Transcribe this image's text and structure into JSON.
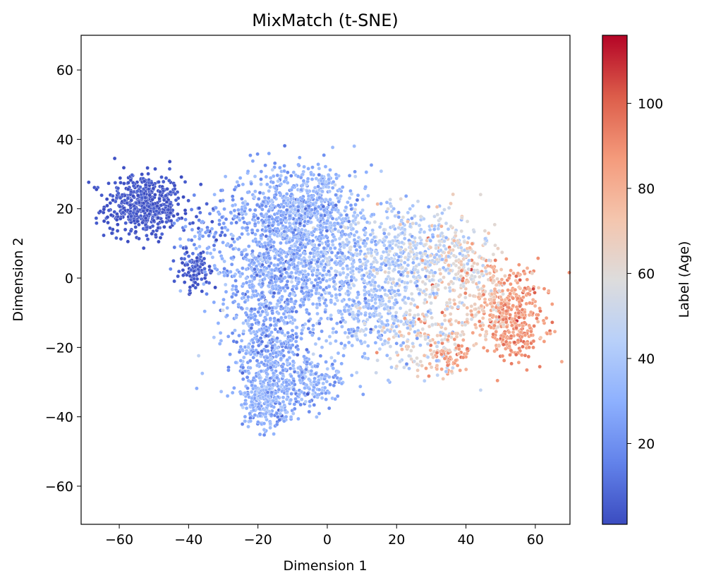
{
  "chart_data": {
    "type": "scatter",
    "title": "MixMatch (t-SNE)",
    "xlabel": "Dimension 1",
    "ylabel": "Dimension 2",
    "xlim": [
      -71,
      70
    ],
    "ylim": [
      -71,
      70
    ],
    "xticks": [
      -60,
      -40,
      -20,
      0,
      20,
      40,
      60
    ],
    "yticks": [
      -60,
      -40,
      -20,
      0,
      20,
      40,
      60
    ],
    "tick_labels_x": [
      "−60",
      "−40",
      "−20",
      "0",
      "20",
      "40",
      "60"
    ],
    "tick_labels_y": [
      "−60",
      "−40",
      "−20",
      "0",
      "20",
      "40",
      "60"
    ],
    "grid": false,
    "colormap": "coolwarm",
    "colorbar": {
      "label": "Label (Age)",
      "range": [
        1,
        116
      ],
      "ticks": [
        20,
        40,
        60,
        80,
        100
      ],
      "tick_labels": [
        "20",
        "40",
        "60",
        "80",
        "100"
      ],
      "colors": [
        "#3b4cc0",
        "#6282ea",
        "#8db0fe",
        "#b8d0f9",
        "#dddcdc",
        "#f4c5ad",
        "#f49a7b",
        "#dc5d4a",
        "#b40426"
      ]
    },
    "point_count_approx": 4800,
    "clusters": [
      {
        "cx": -53,
        "cy": 21,
        "sx": 5.5,
        "sy": 4.5,
        "n": 520,
        "age": 3,
        "ageSpread": 2
      },
      {
        "cx": -38,
        "cy": 2,
        "sx": 2.5,
        "sy": 3,
        "n": 90,
        "age": 4,
        "ageSpread": 3
      },
      {
        "cx": -36,
        "cy": 12,
        "sx": 5,
        "sy": 6,
        "n": 90,
        "age": 20,
        "ageSpread": 10
      },
      {
        "cx": -13,
        "cy": 18,
        "sx": 8,
        "sy": 7,
        "n": 520,
        "age": 27,
        "ageSpread": 8
      },
      {
        "cx": -3,
        "cy": 22,
        "sx": 6,
        "sy": 6,
        "n": 250,
        "age": 32,
        "ageSpread": 7
      },
      {
        "cx": -15,
        "cy": 0,
        "sx": 8,
        "sy": 8,
        "n": 520,
        "age": 27,
        "ageSpread": 8
      },
      {
        "cx": -16,
        "cy": -20,
        "sx": 6,
        "sy": 8,
        "n": 460,
        "age": 26,
        "ageSpread": 8
      },
      {
        "cx": -18,
        "cy": -35,
        "sx": 3.5,
        "sy": 4,
        "n": 260,
        "age": 30,
        "ageSpread": 6
      },
      {
        "cx": -5,
        "cy": -30,
        "sx": 5,
        "sy": 4,
        "n": 170,
        "age": 30,
        "ageSpread": 7
      },
      {
        "cx": 2,
        "cy": 5,
        "sx": 8,
        "sy": 10,
        "n": 480,
        "age": 34,
        "ageSpread": 8
      },
      {
        "cx": 14,
        "cy": -10,
        "sx": 6,
        "sy": 7,
        "n": 260,
        "age": 38,
        "ageSpread": 9
      },
      {
        "cx": 20,
        "cy": 8,
        "sx": 7,
        "sy": 7,
        "n": 260,
        "age": 44,
        "ageSpread": 10
      },
      {
        "cx": 30,
        "cy": 5,
        "sx": 6,
        "sy": 7,
        "n": 200,
        "age": 52,
        "ageSpread": 12
      },
      {
        "cx": 40,
        "cy": 5,
        "sx": 5,
        "sy": 6,
        "n": 170,
        "age": 62,
        "ageSpread": 12
      },
      {
        "cx": 28,
        "cy": -18,
        "sx": 6,
        "sy": 5,
        "n": 170,
        "age": 60,
        "ageSpread": 14
      },
      {
        "cx": 36,
        "cy": -22,
        "sx": 3,
        "sy": 3,
        "n": 60,
        "age": 85,
        "ageSpread": 6
      },
      {
        "cx": 44,
        "cy": -8,
        "sx": 5,
        "sy": 5,
        "n": 140,
        "age": 72,
        "ageSpread": 10
      },
      {
        "cx": 54,
        "cy": -10,
        "sx": 5,
        "sy": 6,
        "n": 300,
        "age": 88,
        "ageSpread": 7
      },
      {
        "cx": 54,
        "cy": -18,
        "sx": 3,
        "sy": 3,
        "n": 60,
        "age": 92,
        "ageSpread": 5
      }
    ]
  }
}
